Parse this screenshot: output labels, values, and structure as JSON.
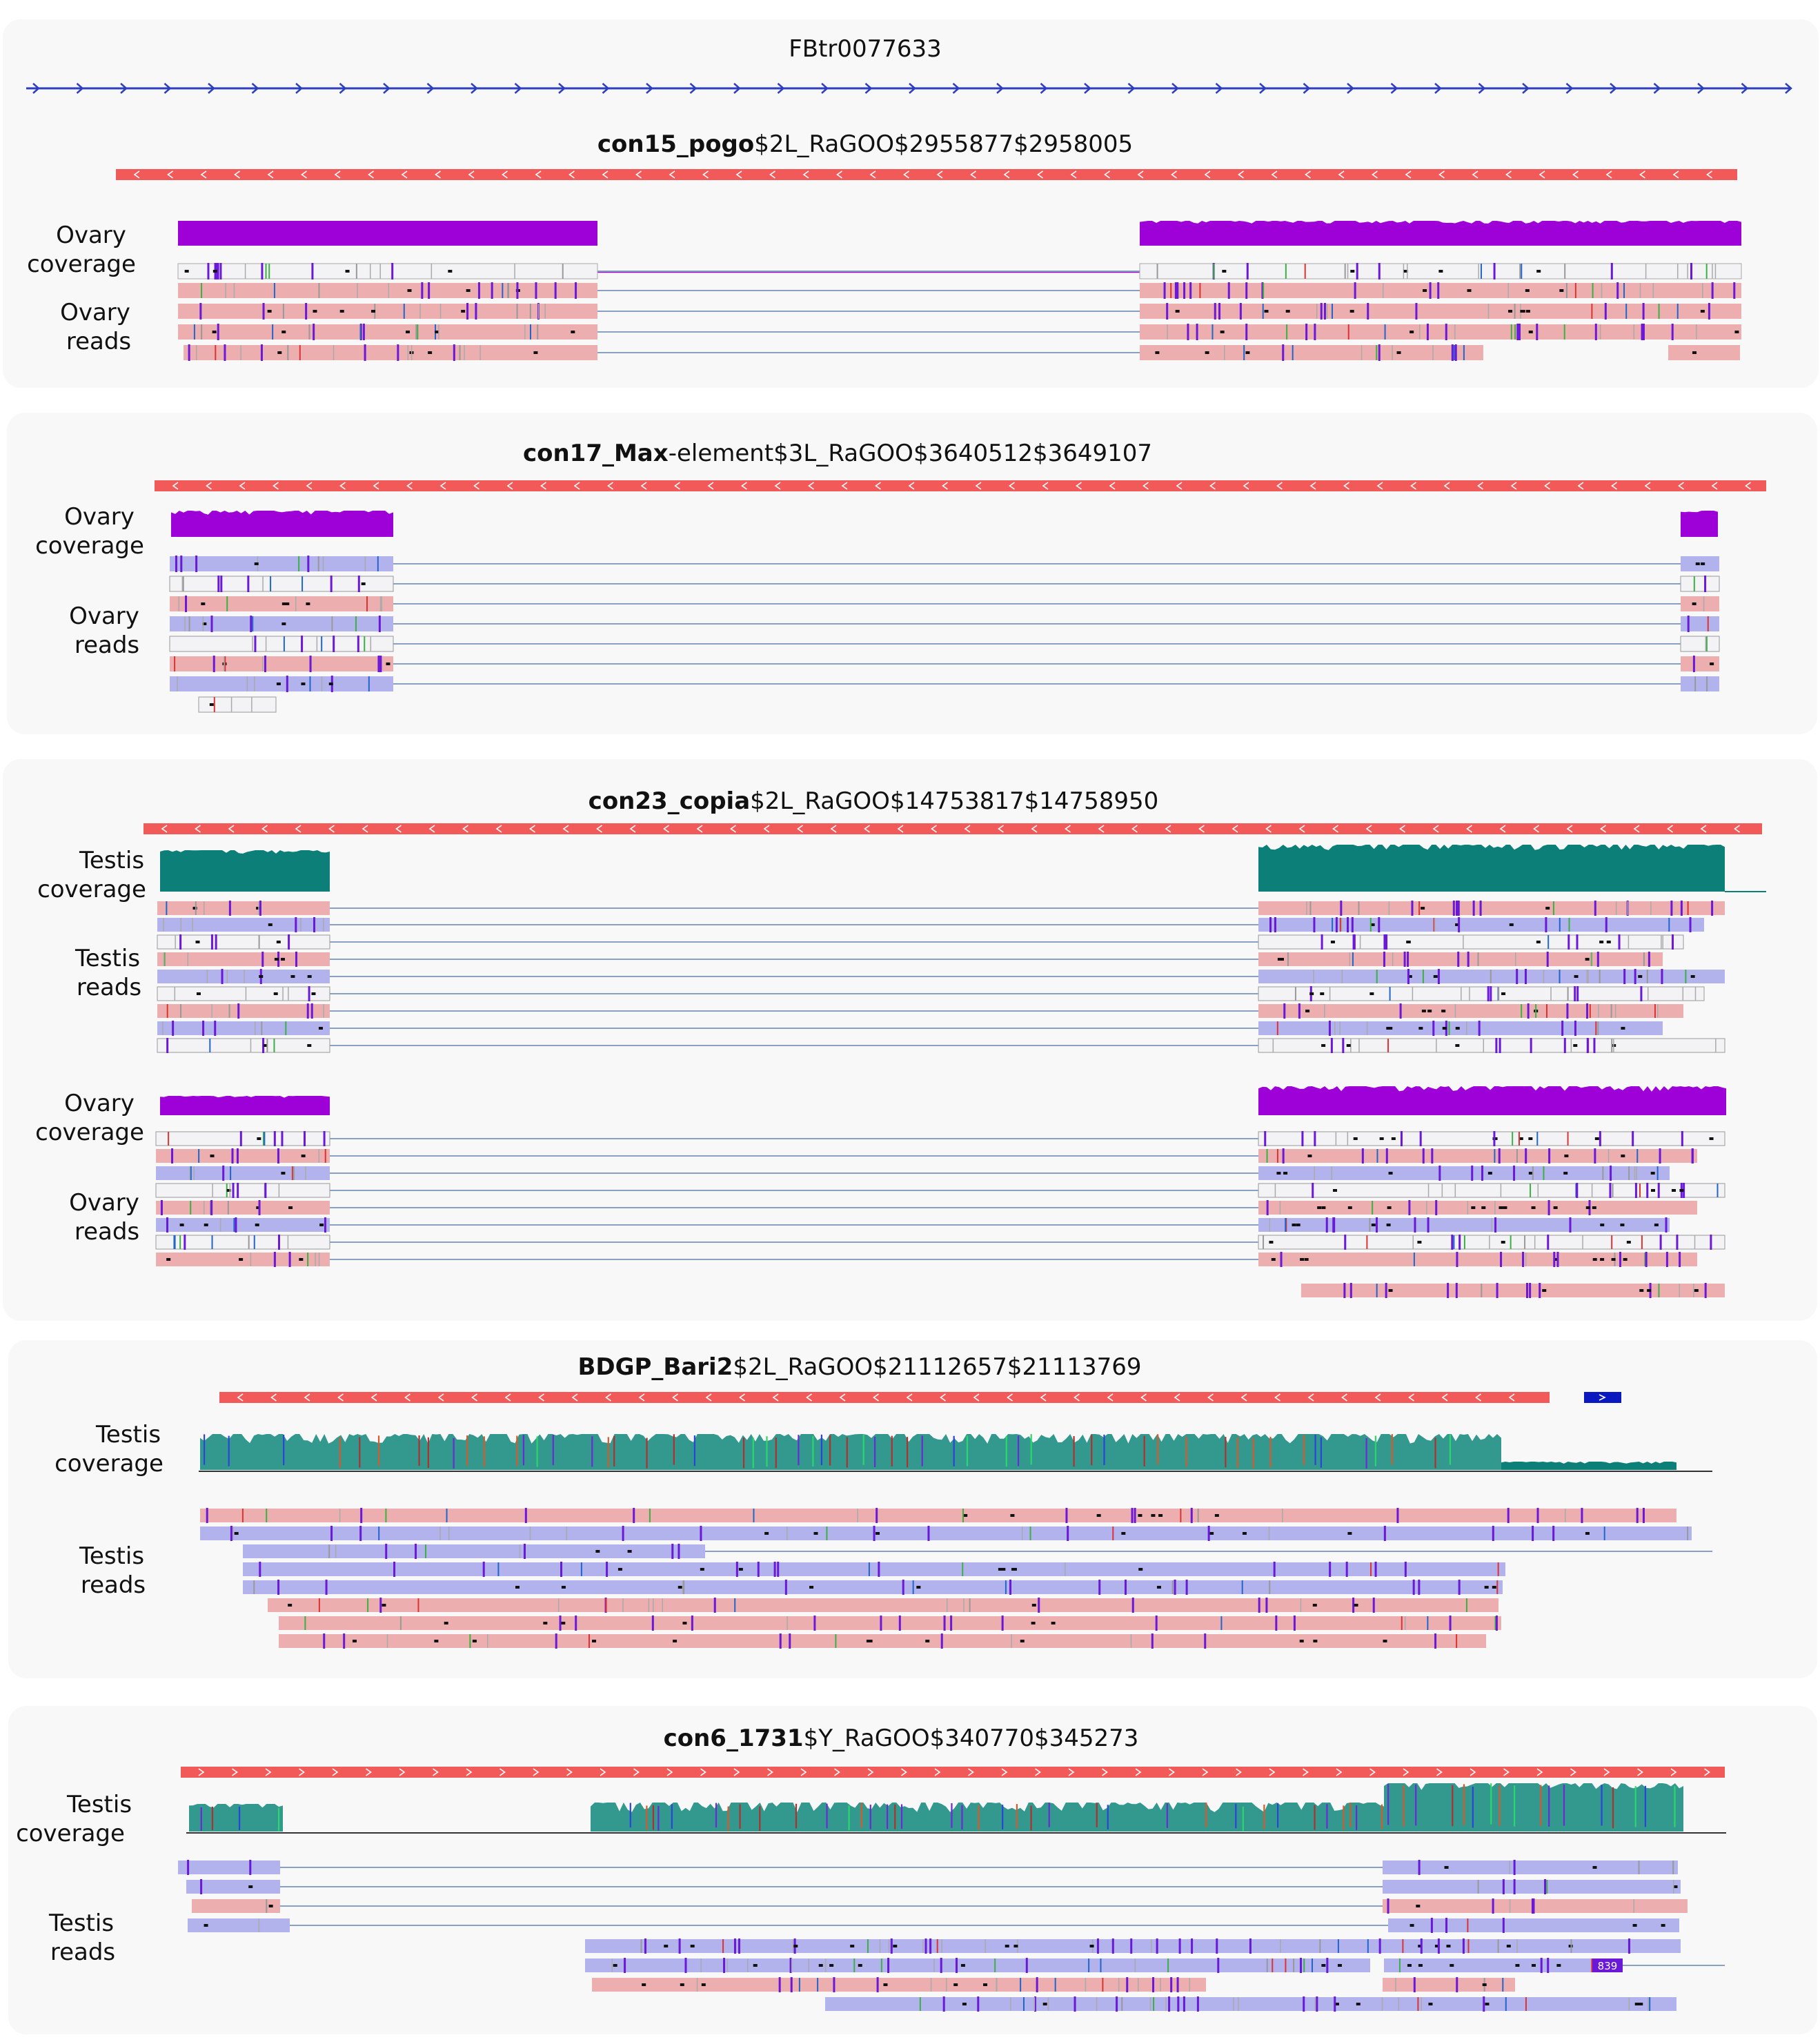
{
  "colors": {
    "panel_bg": "#f8f8f8",
    "transcript": "#2b3fbf",
    "te_bar": "#f25a5a",
    "ovary": "#9e00d8",
    "testis": "#0c8078",
    "testis_mixed": "#33998f",
    "read_forward": "#ecaeae",
    "read_reverse": "#b2b2ec",
    "read_neutral": "#f3f3f6",
    "insertion": "#6a19d9",
    "intron_line": "#8aa0c0"
  },
  "panels": [
    {
      "gene_label": "FBtr0077633",
      "title_bold": "con15_pogo",
      "title_rest": "$2L_RaGOO$2955877$2958005",
      "te_strand": "reverse",
      "tracks": [
        {
          "coverage_label": [
            "Ovary",
            "coverage"
          ],
          "reads_label": [
            "Ovary",
            "reads"
          ],
          "tissue": "ovary"
        }
      ]
    },
    {
      "title_bold": "con17_Max",
      "title_rest": "-element$3L_RaGOO$3640512$3649107",
      "te_strand": "reverse",
      "tracks": [
        {
          "coverage_label": [
            "Ovary",
            "coverage"
          ],
          "reads_label": [
            "Ovary",
            "reads"
          ],
          "tissue": "ovary"
        }
      ]
    },
    {
      "title_bold": "con23_copia",
      "title_rest": "$2L_RaGOO$14753817$14758950",
      "te_strand": "reverse",
      "tracks": [
        {
          "coverage_label": [
            "Testis",
            "coverage"
          ],
          "reads_label": [
            "Testis",
            "reads"
          ],
          "tissue": "testis"
        },
        {
          "coverage_label": [
            "Ovary",
            "coverage"
          ],
          "reads_label": [
            "Ovary",
            "reads"
          ],
          "tissue": "ovary"
        }
      ]
    },
    {
      "title_bold": "BDGP_Bari2",
      "title_rest": "$2L_RaGOO$21112657$21113769",
      "te_strand": "reverse",
      "tracks": [
        {
          "coverage_label": [
            "Testis",
            "coverage"
          ],
          "reads_label": [
            "Testis",
            "reads"
          ],
          "tissue": "testis"
        }
      ]
    },
    {
      "title_bold": "con6_1731",
      "title_rest": "$Y_RaGOO$340770$345273",
      "te_strand": "forward",
      "tracks": [
        {
          "coverage_label": [
            "Testis",
            "coverage"
          ],
          "reads_label": [
            "Testis",
            "reads"
          ],
          "tissue": "testis"
        }
      ]
    }
  ],
  "read_badge": "839"
}
